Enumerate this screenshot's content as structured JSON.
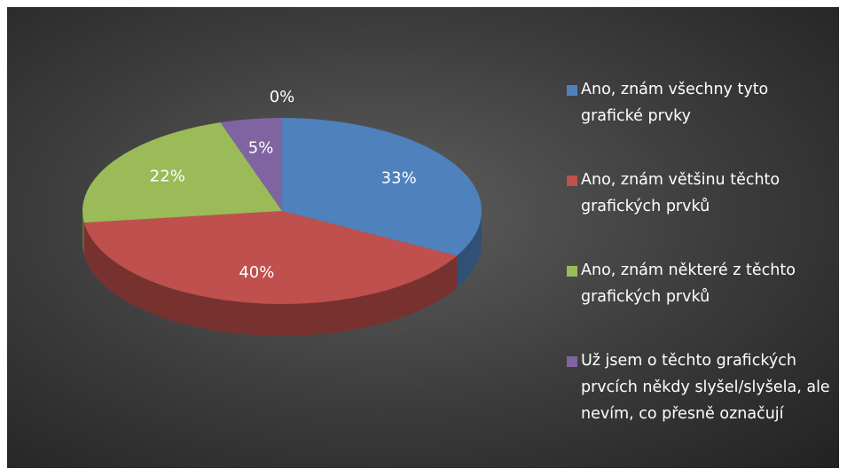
{
  "chart_data": {
    "type": "pie",
    "categories": [
      "Ano, znám všechny tyto grafické prvky",
      "Ano, znám většinu těchto grafických prvků",
      "Ano, znám některé z těchto grafických prvků",
      "Už jsem o těchto grafických prvcích někdy slyšel/slyšela, ale nevím, co přesně označují",
      null
    ],
    "values": [
      33,
      40,
      22,
      5,
      0
    ],
    "value_labels": [
      "33%",
      "40%",
      "22%",
      "5%",
      "0%"
    ],
    "colors": [
      "#4f81bd",
      "#c0504d",
      "#9bbb59",
      "#8064a2",
      "#4bacc6"
    ],
    "legend": "right"
  }
}
